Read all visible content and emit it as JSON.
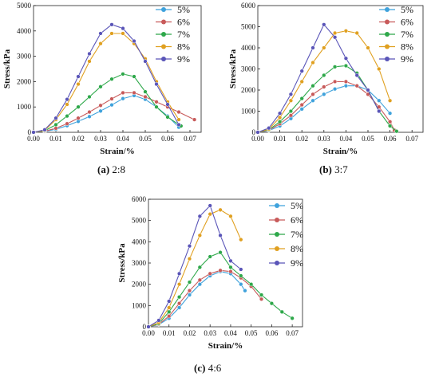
{
  "chart_data": [
    {
      "type": "line",
      "caption_letter": "(a)",
      "caption_text": " 2:8",
      "xlabel": "Strain/%",
      "ylabel": "Stress/kPa",
      "xlim": [
        0,
        0.075
      ],
      "ylim": [
        0,
        5000
      ],
      "xticks": [
        "0.00",
        "0.01",
        "0.02",
        "0.03",
        "0.04",
        "0.05",
        "0.06",
        "0.07"
      ],
      "yticks": [
        "0",
        "1000",
        "2000",
        "3000",
        "4000",
        "5000"
      ],
      "legend": "top-right",
      "series": [
        {
          "name": "5%",
          "color": "#3fa2dc",
          "points": [
            [
              0,
              0
            ],
            [
              0.005,
              30
            ],
            [
              0.01,
              120
            ],
            [
              0.015,
              260
            ],
            [
              0.02,
              430
            ],
            [
              0.025,
              620
            ],
            [
              0.03,
              840
            ],
            [
              0.035,
              1080
            ],
            [
              0.04,
              1330
            ],
            [
              0.045,
              1450
            ],
            [
              0.05,
              1300
            ],
            [
              0.055,
              1000
            ],
            [
              0.06,
              640
            ],
            [
              0.065,
              200
            ]
          ]
        },
        {
          "name": "6%",
          "color": "#c85a5a",
          "points": [
            [
              0,
              0
            ],
            [
              0.005,
              40
            ],
            [
              0.01,
              160
            ],
            [
              0.015,
              340
            ],
            [
              0.02,
              560
            ],
            [
              0.025,
              800
            ],
            [
              0.03,
              1060
            ],
            [
              0.035,
              1320
            ],
            [
              0.04,
              1560
            ],
            [
              0.045,
              1560
            ],
            [
              0.05,
              1400
            ],
            [
              0.055,
              1200
            ],
            [
              0.06,
              1000
            ],
            [
              0.065,
              800
            ],
            [
              0.072,
              500
            ]
          ]
        },
        {
          "name": "7%",
          "color": "#2ea84a",
          "points": [
            [
              0,
              0
            ],
            [
              0.005,
              60
            ],
            [
              0.01,
              300
            ],
            [
              0.015,
              640
            ],
            [
              0.02,
              1000
            ],
            [
              0.025,
              1400
            ],
            [
              0.03,
              1800
            ],
            [
              0.035,
              2100
            ],
            [
              0.04,
              2300
            ],
            [
              0.045,
              2200
            ],
            [
              0.05,
              1600
            ],
            [
              0.055,
              1000
            ],
            [
              0.06,
              600
            ],
            [
              0.066,
              250
            ]
          ]
        },
        {
          "name": "8%",
          "color": "#e0a020",
          "points": [
            [
              0,
              0
            ],
            [
              0.005,
              80
            ],
            [
              0.01,
              500
            ],
            [
              0.015,
              1100
            ],
            [
              0.02,
              1900
            ],
            [
              0.025,
              2800
            ],
            [
              0.03,
              3500
            ],
            [
              0.035,
              3900
            ],
            [
              0.04,
              3900
            ],
            [
              0.045,
              3500
            ],
            [
              0.05,
              2900
            ],
            [
              0.055,
              2000
            ],
            [
              0.06,
              1200
            ],
            [
              0.065,
              500
            ]
          ]
        },
        {
          "name": "9%",
          "color": "#5a55b8",
          "points": [
            [
              0,
              0
            ],
            [
              0.005,
              100
            ],
            [
              0.01,
              560
            ],
            [
              0.015,
              1300
            ],
            [
              0.02,
              2200
            ],
            [
              0.025,
              3100
            ],
            [
              0.03,
              3900
            ],
            [
              0.035,
              4250
            ],
            [
              0.04,
              4100
            ],
            [
              0.045,
              3600
            ],
            [
              0.05,
              2800
            ],
            [
              0.055,
              1900
            ],
            [
              0.06,
              1100
            ],
            [
              0.065,
              300
            ]
          ]
        }
      ]
    },
    {
      "type": "line",
      "caption_letter": "(b)",
      "caption_text": " 3:7",
      "xlabel": "Strain/%",
      "ylabel": "Stress/kPa",
      "xlim": [
        0,
        0.075
      ],
      "ylim": [
        0,
        6000
      ],
      "xticks": [
        "0.00",
        "0.01",
        "0.02",
        "0.03",
        "0.04",
        "0.05",
        "0.06",
        "0.07"
      ],
      "yticks": [
        "0",
        "1000",
        "2000",
        "3000",
        "4000",
        "5000",
        "6000"
      ],
      "legend": "top-right",
      "series": [
        {
          "name": "5%",
          "color": "#3fa2dc",
          "points": [
            [
              0,
              0
            ],
            [
              0.005,
              80
            ],
            [
              0.01,
              300
            ],
            [
              0.015,
              650
            ],
            [
              0.02,
              1100
            ],
            [
              0.025,
              1500
            ],
            [
              0.03,
              1800
            ],
            [
              0.035,
              2050
            ],
            [
              0.04,
              2200
            ],
            [
              0.045,
              2200
            ],
            [
              0.05,
              2000
            ],
            [
              0.055,
              1500
            ],
            [
              0.06,
              900
            ]
          ]
        },
        {
          "name": "6%",
          "color": "#c85a5a",
          "points": [
            [
              0,
              0
            ],
            [
              0.005,
              100
            ],
            [
              0.01,
              400
            ],
            [
              0.015,
              800
            ],
            [
              0.02,
              1300
            ],
            [
              0.025,
              1800
            ],
            [
              0.03,
              2150
            ],
            [
              0.035,
              2400
            ],
            [
              0.04,
              2400
            ],
            [
              0.045,
              2200
            ],
            [
              0.05,
              1800
            ],
            [
              0.055,
              1200
            ],
            [
              0.06,
              500
            ],
            [
              0.062,
              100
            ]
          ]
        },
        {
          "name": "7%",
          "color": "#2ea84a",
          "points": [
            [
              0,
              0
            ],
            [
              0.005,
              120
            ],
            [
              0.01,
              500
            ],
            [
              0.015,
              1000
            ],
            [
              0.02,
              1600
            ],
            [
              0.025,
              2200
            ],
            [
              0.03,
              2700
            ],
            [
              0.035,
              3100
            ],
            [
              0.04,
              3150
            ],
            [
              0.045,
              2800
            ],
            [
              0.05,
              2000
            ],
            [
              0.055,
              1000
            ],
            [
              0.06,
              300
            ],
            [
              0.063,
              50
            ]
          ]
        },
        {
          "name": "8%",
          "color": "#e0a020",
          "points": [
            [
              0,
              0
            ],
            [
              0.005,
              150
            ],
            [
              0.01,
              700
            ],
            [
              0.015,
              1500
            ],
            [
              0.02,
              2400
            ],
            [
              0.025,
              3300
            ],
            [
              0.03,
              4000
            ],
            [
              0.035,
              4700
            ],
            [
              0.04,
              4800
            ],
            [
              0.045,
              4700
            ],
            [
              0.05,
              4000
            ],
            [
              0.055,
              3000
            ],
            [
              0.06,
              1500
            ]
          ]
        },
        {
          "name": "9%",
          "color": "#5a55b8",
          "points": [
            [
              0,
              0
            ],
            [
              0.005,
              200
            ],
            [
              0.01,
              900
            ],
            [
              0.015,
              1800
            ],
            [
              0.02,
              2900
            ],
            [
              0.025,
              4000
            ],
            [
              0.03,
              5100
            ],
            [
              0.035,
              4500
            ],
            [
              0.04,
              3500
            ],
            [
              0.045,
              2700
            ],
            [
              0.05,
              2000
            ],
            [
              0.055,
              1000
            ]
          ]
        }
      ]
    },
    {
      "type": "line",
      "caption_letter": "(c)",
      "caption_text": " 4:6",
      "xlabel": "Strain/%",
      "ylabel": "Stress/kPa",
      "xlim": [
        0,
        0.075
      ],
      "ylim": [
        0,
        6000
      ],
      "xticks": [
        "0.00",
        "0.01",
        "0.02",
        "0.03",
        "0.04",
        "0.05",
        "0.06",
        "0.07"
      ],
      "yticks": [
        "0",
        "1000",
        "2000",
        "3000",
        "4000",
        "5000",
        "6000"
      ],
      "legend": "top-right",
      "series": [
        {
          "name": "5%",
          "color": "#3fa2dc",
          "points": [
            [
              0,
              0
            ],
            [
              0.005,
              100
            ],
            [
              0.01,
              400
            ],
            [
              0.015,
              900
            ],
            [
              0.02,
              1500
            ],
            [
              0.025,
              2000
            ],
            [
              0.03,
              2400
            ],
            [
              0.035,
              2600
            ],
            [
              0.04,
              2500
            ],
            [
              0.045,
              2000
            ],
            [
              0.047,
              1700
            ]
          ]
        },
        {
          "name": "6%",
          "color": "#c85a5a",
          "points": [
            [
              0,
              0
            ],
            [
              0.005,
              120
            ],
            [
              0.01,
              500
            ],
            [
              0.015,
              1100
            ],
            [
              0.02,
              1700
            ],
            [
              0.025,
              2200
            ],
            [
              0.03,
              2500
            ],
            [
              0.035,
              2650
            ],
            [
              0.04,
              2600
            ],
            [
              0.045,
              2300
            ],
            [
              0.05,
              1900
            ],
            [
              0.055,
              1300
            ]
          ]
        },
        {
          "name": "7%",
          "color": "#2ea84a",
          "points": [
            [
              0,
              0
            ],
            [
              0.005,
              150
            ],
            [
              0.01,
              700
            ],
            [
              0.015,
              1400
            ],
            [
              0.02,
              2100
            ],
            [
              0.025,
              2800
            ],
            [
              0.03,
              3300
            ],
            [
              0.035,
              3500
            ],
            [
              0.04,
              2800
            ],
            [
              0.045,
              2400
            ],
            [
              0.05,
              2000
            ],
            [
              0.055,
              1500
            ],
            [
              0.06,
              1100
            ],
            [
              0.065,
              700
            ],
            [
              0.07,
              400
            ]
          ]
        },
        {
          "name": "8%",
          "color": "#e0a020",
          "points": [
            [
              0,
              0
            ],
            [
              0.005,
              200
            ],
            [
              0.01,
              900
            ],
            [
              0.015,
              2000
            ],
            [
              0.02,
              3200
            ],
            [
              0.025,
              4300
            ],
            [
              0.03,
              5300
            ],
            [
              0.035,
              5500
            ],
            [
              0.04,
              5200
            ],
            [
              0.045,
              4100
            ]
          ]
        },
        {
          "name": "9%",
          "color": "#5a55b8",
          "points": [
            [
              0,
              0
            ],
            [
              0.005,
              300
            ],
            [
              0.01,
              1200
            ],
            [
              0.015,
              2500
            ],
            [
              0.02,
              3800
            ],
            [
              0.025,
              5200
            ],
            [
              0.03,
              5700
            ],
            [
              0.035,
              4300
            ],
            [
              0.04,
              3100
            ],
            [
              0.045,
              2700
            ]
          ]
        }
      ]
    }
  ]
}
